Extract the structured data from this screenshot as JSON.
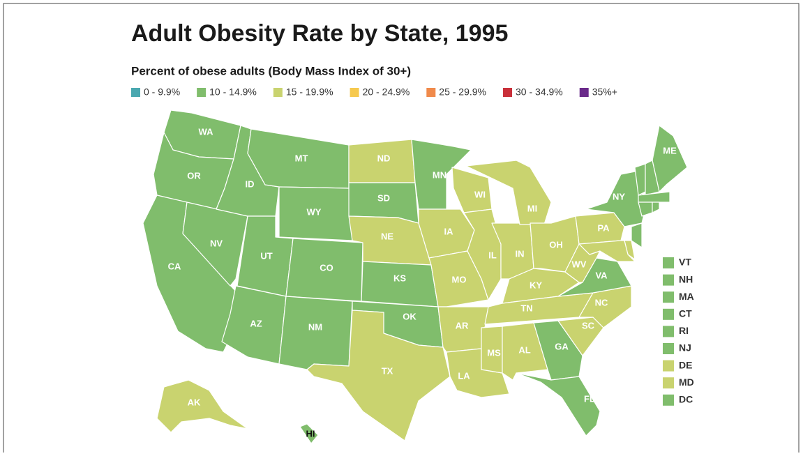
{
  "title": "Adult Obesity Rate by State, 1995",
  "subtitle": "Percent of obese adults (Body Mass Index of 30+)",
  "legend": [
    {
      "label": "0 - 9.9%",
      "color": "#4aa8b0"
    },
    {
      "label": "10 - 14.9%",
      "color": "#80bd6c"
    },
    {
      "label": "15 - 19.9%",
      "color": "#c9d36f"
    },
    {
      "label": "20 - 24.9%",
      "color": "#f6c94e"
    },
    {
      "label": "25 - 29.9%",
      "color": "#f08a4b"
    },
    {
      "label": "30 - 34.9%",
      "color": "#c9303a"
    },
    {
      "label": "35%+",
      "color": "#6a2a8a"
    }
  ],
  "states": [
    {
      "label": "WA",
      "color": "#80bd6c"
    },
    {
      "label": "OR",
      "color": "#80bd6c"
    },
    {
      "label": "CA",
      "color": "#80bd6c"
    },
    {
      "label": "NV",
      "color": "#80bd6c"
    },
    {
      "label": "ID",
      "color": "#80bd6c"
    },
    {
      "label": "MT",
      "color": "#80bd6c"
    },
    {
      "label": "WY",
      "color": "#80bd6c"
    },
    {
      "label": "UT",
      "color": "#80bd6c"
    },
    {
      "label": "CO",
      "color": "#80bd6c"
    },
    {
      "label": "AZ",
      "color": "#80bd6c"
    },
    {
      "label": "NM",
      "color": "#80bd6c"
    },
    {
      "label": "ND",
      "color": "#c9d36f"
    },
    {
      "label": "SD",
      "color": "#80bd6c"
    },
    {
      "label": "NE",
      "color": "#c9d36f"
    },
    {
      "label": "KS",
      "color": "#80bd6c"
    },
    {
      "label": "OK",
      "color": "#80bd6c"
    },
    {
      "label": "TX",
      "color": "#c9d36f"
    },
    {
      "label": "MN",
      "color": "#80bd6c"
    },
    {
      "label": "IA",
      "color": "#c9d36f"
    },
    {
      "label": "MO",
      "color": "#c9d36f"
    },
    {
      "label": "AR",
      "color": "#c9d36f"
    },
    {
      "label": "LA",
      "color": "#c9d36f"
    },
    {
      "label": "WI",
      "color": "#c9d36f"
    },
    {
      "label": "IL",
      "color": "#c9d36f"
    },
    {
      "label": "IN",
      "color": "#c9d36f"
    },
    {
      "label": "MI",
      "color": "#c9d36f"
    },
    {
      "label": "OH",
      "color": "#c9d36f"
    },
    {
      "label": "KY",
      "color": "#c9d36f"
    },
    {
      "label": "TN",
      "color": "#c9d36f"
    },
    {
      "label": "MS",
      "color": "#c9d36f"
    },
    {
      "label": "AL",
      "color": "#c9d36f"
    },
    {
      "label": "GA",
      "color": "#80bd6c"
    },
    {
      "label": "FL",
      "color": "#80bd6c"
    },
    {
      "label": "SC",
      "color": "#c9d36f"
    },
    {
      "label": "NC",
      "color": "#c9d36f"
    },
    {
      "label": "VA",
      "color": "#80bd6c"
    },
    {
      "label": "WV",
      "color": "#c9d36f"
    },
    {
      "label": "PA",
      "color": "#c9d36f"
    },
    {
      "label": "NY",
      "color": "#80bd6c"
    },
    {
      "label": "ME",
      "color": "#80bd6c"
    },
    {
      "label": "AK",
      "color": "#c9d36f"
    },
    {
      "label": "HI",
      "color": "#80bd6c"
    }
  ],
  "small_states": [
    {
      "label": "VT",
      "color": "#80bd6c"
    },
    {
      "label": "NH",
      "color": "#80bd6c"
    },
    {
      "label": "MA",
      "color": "#80bd6c"
    },
    {
      "label": "CT",
      "color": "#80bd6c"
    },
    {
      "label": "RI",
      "color": "#80bd6c"
    },
    {
      "label": "NJ",
      "color": "#80bd6c"
    },
    {
      "label": "DE",
      "color": "#c9d36f"
    },
    {
      "label": "MD",
      "color": "#c9d36f"
    },
    {
      "label": "DC",
      "color": "#80bd6c"
    }
  ]
}
